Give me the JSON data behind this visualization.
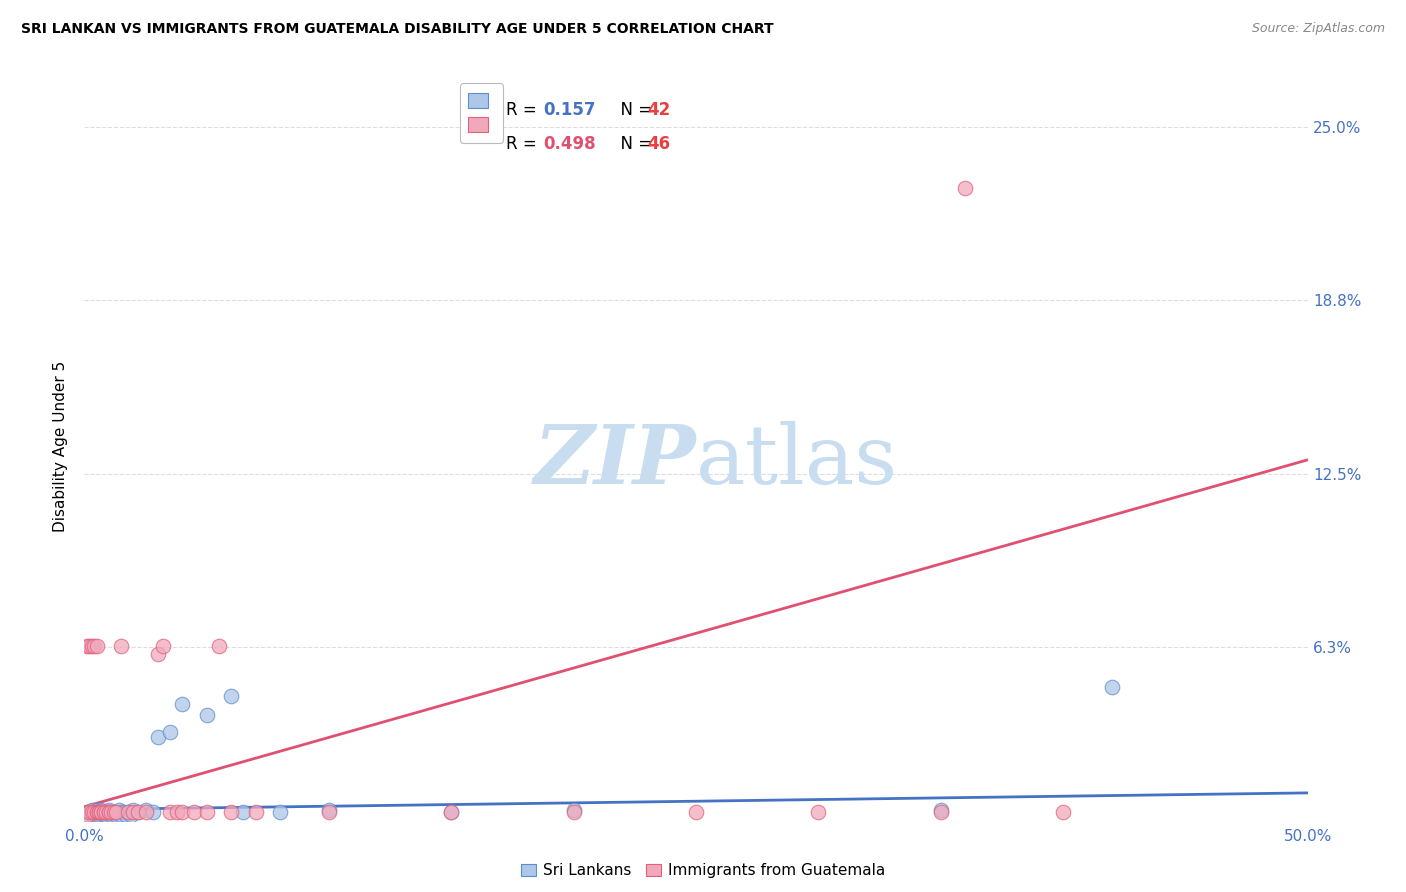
{
  "title": "SRI LANKAN VS IMMIGRANTS FROM GUATEMALA DISABILITY AGE UNDER 5 CORRELATION CHART",
  "source": "Source: ZipAtlas.com",
  "ylabel": "Disability Age Under 5",
  "xlim": [
    0.0,
    0.5
  ],
  "ylim": [
    0.0,
    0.27
  ],
  "ytick_vals": [
    0.0,
    0.0625,
    0.125,
    0.1875,
    0.25
  ],
  "ytick_labels": [
    "",
    "6.3%",
    "12.5%",
    "18.8%",
    "25.0%"
  ],
  "xtick_vals": [
    0.0,
    0.5
  ],
  "xtick_labels": [
    "0.0%",
    "50.0%"
  ],
  "bg_color": "#ffffff",
  "grid_color": "#dddddd",
  "axis_label_color": "#4472c4",
  "watermark_color": "#c8ddf0",
  "sri_lankan": {
    "label": "Sri Lankans",
    "R": 0.157,
    "N": 42,
    "scatter_color": "#aec6e8",
    "scatter_edge": "#5b8fcc",
    "line_color": "#4472c4",
    "line_style": "solid",
    "x": [
      0.001,
      0.002,
      0.003,
      0.003,
      0.004,
      0.005,
      0.005,
      0.006,
      0.006,
      0.007,
      0.007,
      0.008,
      0.008,
      0.009,
      0.01,
      0.01,
      0.011,
      0.012,
      0.013,
      0.014,
      0.015,
      0.015,
      0.016,
      0.017,
      0.018,
      0.019,
      0.02,
      0.022,
      0.025,
      0.028,
      0.03,
      0.035,
      0.04,
      0.05,
      0.06,
      0.065,
      0.08,
      0.1,
      0.15,
      0.2,
      0.35,
      0.42
    ],
    "y": [
      0.002,
      0.003,
      0.002,
      0.004,
      0.003,
      0.002,
      0.004,
      0.003,
      0.002,
      0.003,
      0.004,
      0.002,
      0.003,
      0.002,
      0.003,
      0.004,
      0.002,
      0.003,
      0.002,
      0.004,
      0.003,
      0.002,
      0.003,
      0.002,
      0.003,
      0.002,
      0.004,
      0.003,
      0.004,
      0.003,
      0.03,
      0.032,
      0.042,
      0.038,
      0.045,
      0.003,
      0.003,
      0.004,
      0.003,
      0.004,
      0.004,
      0.048
    ],
    "trend_x": [
      0.0,
      0.5
    ],
    "trend_y": [
      0.004,
      0.01
    ]
  },
  "guatemala": {
    "label": "Immigrants from Guatemala",
    "R": 0.498,
    "N": 46,
    "scatter_color": "#f2a8bc",
    "scatter_edge": "#e0607a",
    "line_color": "#e05070",
    "line_style": "solid",
    "x": [
      0.001,
      0.001,
      0.002,
      0.002,
      0.003,
      0.003,
      0.004,
      0.004,
      0.005,
      0.005,
      0.005,
      0.006,
      0.006,
      0.007,
      0.007,
      0.008,
      0.008,
      0.009,
      0.01,
      0.01,
      0.011,
      0.012,
      0.013,
      0.015,
      0.018,
      0.02,
      0.022,
      0.025,
      0.03,
      0.032,
      0.035,
      0.038,
      0.04,
      0.045,
      0.05,
      0.055,
      0.06,
      0.07,
      0.1,
      0.15,
      0.2,
      0.25,
      0.3,
      0.35,
      0.4,
      0.36
    ],
    "y": [
      0.002,
      0.063,
      0.063,
      0.003,
      0.063,
      0.003,
      0.063,
      0.003,
      0.003,
      0.003,
      0.063,
      0.003,
      0.003,
      0.003,
      0.003,
      0.003,
      0.003,
      0.003,
      0.003,
      0.003,
      0.003,
      0.003,
      0.003,
      0.063,
      0.003,
      0.003,
      0.003,
      0.003,
      0.06,
      0.063,
      0.003,
      0.003,
      0.003,
      0.003,
      0.003,
      0.063,
      0.003,
      0.003,
      0.003,
      0.003,
      0.003,
      0.003,
      0.003,
      0.003,
      0.003,
      0.228
    ],
    "trend_x": [
      0.0,
      0.5
    ],
    "trend_y": [
      0.005,
      0.13
    ]
  },
  "legend": {
    "R_color_sri": "#4472c4",
    "N_color_sri": "#e84040",
    "R_color_guat": "#e05070",
    "N_color_guat": "#e84040"
  }
}
